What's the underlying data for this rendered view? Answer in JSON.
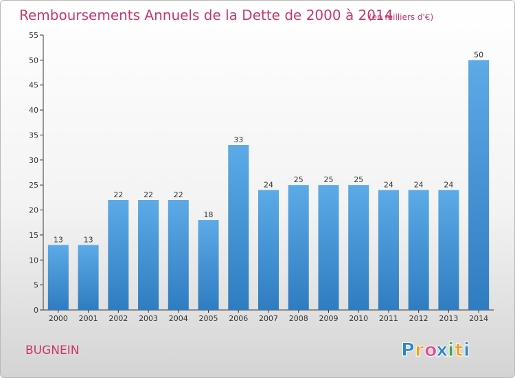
{
  "chart_data": {
    "type": "bar",
    "title": "Remboursements Annuels de la Dette de 2000 à 2014",
    "subtitle": "(en milliers d'€)",
    "categories": [
      "2000",
      "2001",
      "2002",
      "2003",
      "2004",
      "2005",
      "2006",
      "2007",
      "2008",
      "2009",
      "2010",
      "2011",
      "2012",
      "2013",
      "2014"
    ],
    "values": [
      13,
      13,
      22,
      22,
      22,
      18,
      33,
      24,
      25,
      25,
      25,
      24,
      24,
      24,
      50
    ],
    "ylim": [
      0,
      55
    ],
    "yticks": [
      0,
      5,
      10,
      15,
      20,
      25,
      30,
      35,
      40,
      45,
      50,
      55
    ],
    "xlabel": "",
    "ylabel": "",
    "grid": false,
    "data_labels": true,
    "bar_color_top": "#5caae6",
    "bar_color_bottom": "#2f7cc1"
  },
  "place": "BUGNEIN",
  "logo": {
    "text": "Proxiti",
    "letters": [
      "P",
      "r",
      "o",
      "x",
      "i",
      "t",
      "i"
    ],
    "colors": [
      "#2b86c9",
      "#f0a020",
      "#e94a8c",
      "#2b86c9",
      "#3aa84a",
      "#f0a020",
      "#2b86c9"
    ]
  },
  "colors": {
    "title": "#c8366b",
    "axis": "#333333"
  }
}
